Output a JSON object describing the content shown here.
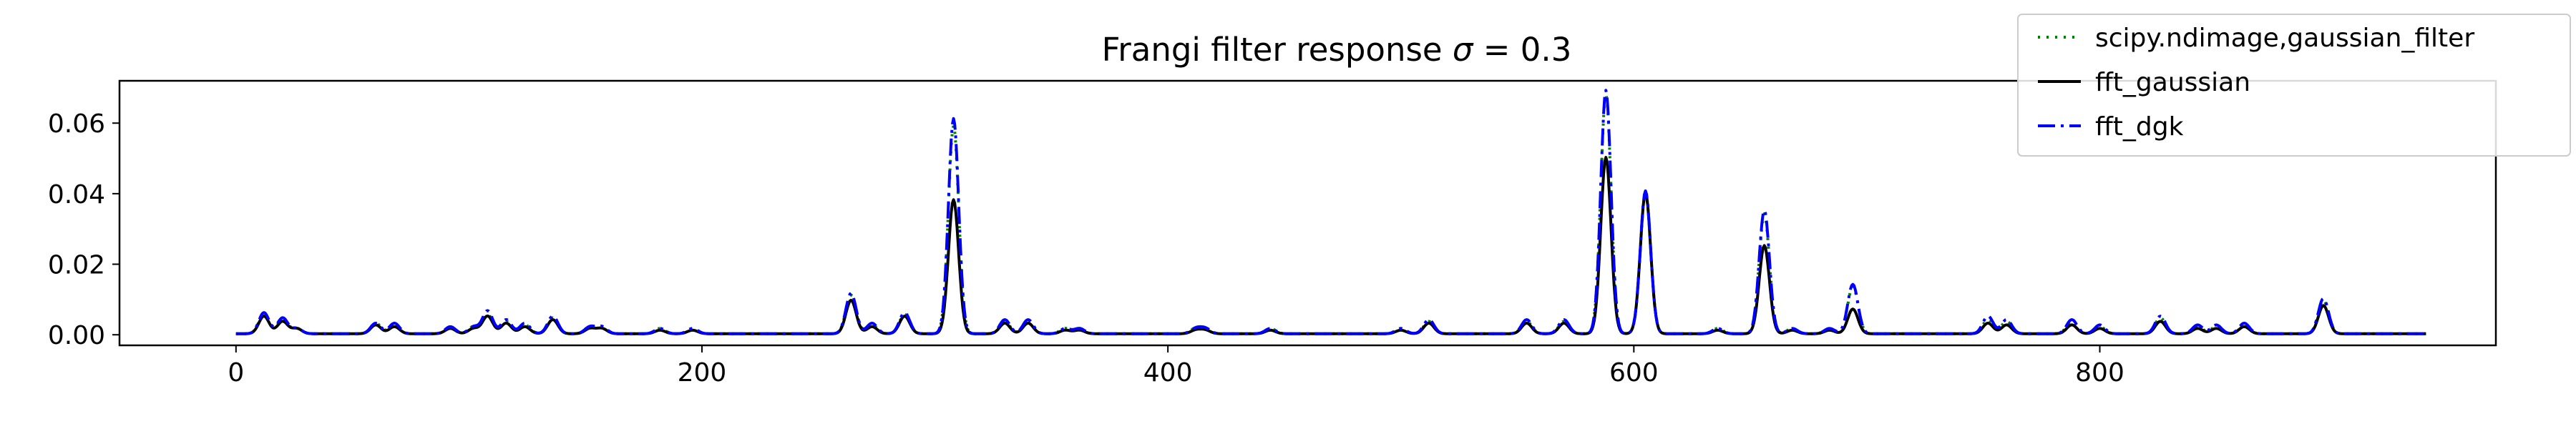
{
  "chart_data": {
    "type": "line",
    "title": "Frangi filter response σ = 0.3",
    "title_prefix": "Frangi filter response ",
    "title_symbol": "σ",
    "title_suffix": " = 0.3",
    "xlabel": "",
    "ylabel": "",
    "xlim": [
      -50,
      970
    ],
    "ylim": [
      -0.003,
      0.072
    ],
    "xticks": [
      0,
      200,
      400,
      600,
      800
    ],
    "xtick_labels": [
      "0",
      "200",
      "400",
      "600",
      "800"
    ],
    "yticks": [
      0.0,
      0.02,
      0.04,
      0.06
    ],
    "ytick_labels": [
      "0.00",
      "0.02",
      "0.04",
      "0.06"
    ],
    "grid": false,
    "legend_position": "upper-right",
    "x_start": 0,
    "x_end": 940,
    "series": [
      {
        "name": "scipy.ndimage,gaussian_filter",
        "color": "#008000",
        "style": "dotted",
        "peaks": [
          [
            12,
            0.0055
          ],
          [
            20,
            0.004
          ],
          [
            26,
            0.0015
          ],
          [
            60,
            0.003
          ],
          [
            68,
            0.0025
          ],
          [
            92,
            0.0015
          ],
          [
            102,
            0.002
          ],
          [
            108,
            0.0055
          ],
          [
            116,
            0.0035
          ],
          [
            124,
            0.0025
          ],
          [
            136,
            0.0045
          ],
          [
            152,
            0.002
          ],
          [
            157,
            0.002
          ],
          [
            182,
            0.0015
          ],
          [
            196,
            0.0015
          ],
          [
            264,
            0.011
          ],
          [
            273,
            0.0025
          ],
          [
            287,
            0.0055
          ],
          [
            308,
            0.059
          ],
          [
            330,
            0.0035
          ],
          [
            340,
            0.0035
          ],
          [
            356,
            0.0015
          ],
          [
            362,
            0.0015
          ],
          [
            412,
            0.0015
          ],
          [
            416,
            0.0015
          ],
          [
            444,
            0.0015
          ],
          [
            500,
            0.0015
          ],
          [
            512,
            0.0035
          ],
          [
            554,
            0.0035
          ],
          [
            570,
            0.0035
          ],
          [
            588,
            0.068
          ],
          [
            605,
            0.04
          ],
          [
            636,
            0.0015
          ],
          [
            656,
            0.034
          ],
          [
            668,
            0.0015
          ],
          [
            684,
            0.0015
          ],
          [
            694,
            0.0135
          ],
          [
            752,
            0.004
          ],
          [
            760,
            0.0035
          ],
          [
            788,
            0.0035
          ],
          [
            800,
            0.002
          ],
          [
            826,
            0.0045
          ],
          [
            842,
            0.002
          ],
          [
            850,
            0.002
          ],
          [
            862,
            0.0025
          ],
          [
            896,
            0.0095
          ]
        ]
      },
      {
        "name": "fft_gaussian",
        "color": "#000000",
        "style": "solid",
        "peaks": [
          [
            12,
            0.005
          ],
          [
            20,
            0.0035
          ],
          [
            26,
            0.0015
          ],
          [
            60,
            0.0025
          ],
          [
            68,
            0.002
          ],
          [
            92,
            0.0015
          ],
          [
            102,
            0.0015
          ],
          [
            108,
            0.005
          ],
          [
            116,
            0.003
          ],
          [
            124,
            0.002
          ],
          [
            136,
            0.004
          ],
          [
            152,
            0.0015
          ],
          [
            157,
            0.0015
          ],
          [
            182,
            0.001
          ],
          [
            196,
            0.001
          ],
          [
            264,
            0.0095
          ],
          [
            273,
            0.002
          ],
          [
            287,
            0.005
          ],
          [
            308,
            0.038
          ],
          [
            330,
            0.003
          ],
          [
            340,
            0.003
          ],
          [
            356,
            0.001
          ],
          [
            362,
            0.001
          ],
          [
            412,
            0.001
          ],
          [
            416,
            0.001
          ],
          [
            444,
            0.001
          ],
          [
            500,
            0.001
          ],
          [
            512,
            0.003
          ],
          [
            554,
            0.003
          ],
          [
            570,
            0.003
          ],
          [
            588,
            0.05
          ],
          [
            605,
            0.04
          ],
          [
            636,
            0.001
          ],
          [
            656,
            0.025
          ],
          [
            668,
            0.001
          ],
          [
            684,
            0.001
          ],
          [
            694,
            0.007
          ],
          [
            752,
            0.003
          ],
          [
            760,
            0.0025
          ],
          [
            788,
            0.0025
          ],
          [
            800,
            0.0015
          ],
          [
            826,
            0.0035
          ],
          [
            842,
            0.0015
          ],
          [
            850,
            0.0015
          ],
          [
            862,
            0.002
          ],
          [
            896,
            0.008
          ]
        ]
      },
      {
        "name": "fft_dgk",
        "color": "#0000ff",
        "style": "dashdot",
        "peaks": [
          [
            12,
            0.006
          ],
          [
            20,
            0.0045
          ],
          [
            26,
            0.0015
          ],
          [
            60,
            0.003
          ],
          [
            68,
            0.003
          ],
          [
            92,
            0.002
          ],
          [
            102,
            0.002
          ],
          [
            108,
            0.0065
          ],
          [
            116,
            0.004
          ],
          [
            124,
            0.003
          ],
          [
            136,
            0.005
          ],
          [
            152,
            0.002
          ],
          [
            157,
            0.002
          ],
          [
            182,
            0.0015
          ],
          [
            196,
            0.0015
          ],
          [
            264,
            0.0115
          ],
          [
            273,
            0.003
          ],
          [
            287,
            0.006
          ],
          [
            308,
            0.061
          ],
          [
            330,
            0.004
          ],
          [
            340,
            0.004
          ],
          [
            356,
            0.0015
          ],
          [
            362,
            0.0015
          ],
          [
            412,
            0.0015
          ],
          [
            416,
            0.0015
          ],
          [
            444,
            0.0015
          ],
          [
            500,
            0.0015
          ],
          [
            512,
            0.004
          ],
          [
            554,
            0.004
          ],
          [
            570,
            0.004
          ],
          [
            588,
            0.069
          ],
          [
            605,
            0.0405
          ],
          [
            636,
            0.0015
          ],
          [
            656,
            0.035
          ],
          [
            668,
            0.0015
          ],
          [
            684,
            0.0015
          ],
          [
            694,
            0.014
          ],
          [
            752,
            0.005
          ],
          [
            760,
            0.004
          ],
          [
            788,
            0.004
          ],
          [
            800,
            0.0025
          ],
          [
            826,
            0.005
          ],
          [
            842,
            0.0025
          ],
          [
            850,
            0.0025
          ],
          [
            862,
            0.003
          ],
          [
            896,
            0.01
          ]
        ]
      }
    ]
  }
}
